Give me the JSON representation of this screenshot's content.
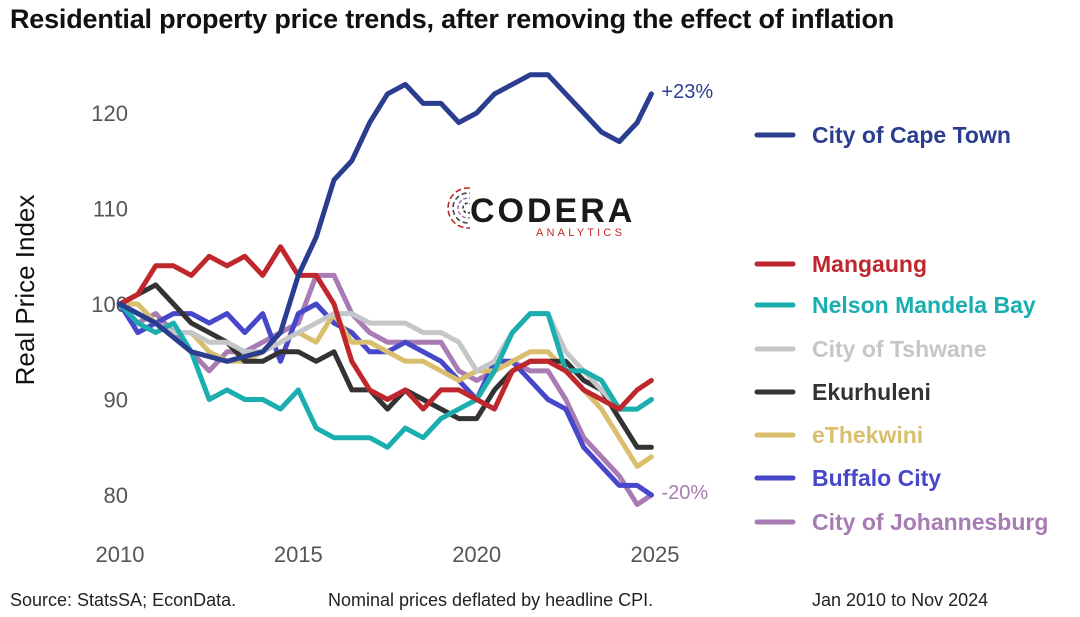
{
  "footer": {
    "source": "Source: StatsSA; EconData.",
    "note": "Nominal prices deflated by headline CPI.",
    "period": "Jan 2010 to Nov 2024"
  },
  "logo": {
    "main": "CODERA",
    "sub": "ANALYTICS"
  },
  "colors": {
    "axis_text": "#555555",
    "background": "#ffffff"
  },
  "chart_data": {
    "type": "line",
    "title": "Residential property price trends, after removing the effect of inflation",
    "xlabel": "",
    "ylabel": "Real Price Index",
    "xlim": [
      2009.5,
      2025.5
    ],
    "ylim": [
      76,
      127
    ],
    "xticks": [
      2010,
      2015,
      2020,
      2025
    ],
    "yticks": [
      80,
      90,
      100,
      110,
      120
    ],
    "grid": false,
    "legend": "right",
    "annotations": [
      {
        "text": "+23%",
        "series": "City of Cape Town",
        "color": "#2a3d8f"
      },
      {
        "text": "-20%",
        "series": "City of Johannesburg",
        "color": "#a87bb5"
      }
    ],
    "series": [
      {
        "name": "City of Cape Town",
        "color": "#2a3d8f",
        "x": [
          2010,
          2011,
          2012,
          2013,
          2014,
          2014.5,
          2015,
          2015.5,
          2016,
          2016.5,
          2017,
          2017.5,
          2018,
          2018.5,
          2019,
          2019.5,
          2020,
          2020.5,
          2021,
          2021.5,
          2022,
          2022.5,
          2023,
          2023.5,
          2024,
          2024.5,
          2024.9
        ],
        "y": [
          100,
          98,
          95,
          94,
          95,
          97,
          103,
          107,
          113,
          115,
          119,
          122,
          123,
          121,
          121,
          119,
          120,
          122,
          123,
          124,
          124,
          122,
          120,
          118,
          117,
          119,
          122
        ]
      },
      {
        "name": "Mangaung",
        "color": "#c0272d",
        "x": [
          2010,
          2010.5,
          2011,
          2011.5,
          2012,
          2012.5,
          2013,
          2013.5,
          2014,
          2014.5,
          2015,
          2015.5,
          2016,
          2016.5,
          2017,
          2017.5,
          2018,
          2018.5,
          2019,
          2019.5,
          2020,
          2020.5,
          2021,
          2021.5,
          2022,
          2022.5,
          2023,
          2023.5,
          2024,
          2024.5,
          2024.9
        ],
        "y": [
          100,
          101,
          104,
          104,
          103,
          105,
          104,
          105,
          103,
          106,
          103,
          103,
          100,
          94,
          91,
          90,
          91,
          89,
          91,
          91,
          90,
          89,
          93,
          94,
          94,
          93,
          91,
          90,
          89,
          91,
          92
        ]
      },
      {
        "name": "Nelson Mandela Bay",
        "color": "#1aaeb0",
        "x": [
          2010,
          2010.5,
          2011,
          2011.5,
          2012,
          2012.5,
          2013,
          2013.5,
          2014,
          2014.5,
          2015,
          2015.5,
          2016,
          2016.5,
          2017,
          2017.5,
          2018,
          2018.5,
          2019,
          2019.5,
          2020,
          2020.5,
          2021,
          2021.5,
          2022,
          2022.5,
          2023,
          2023.5,
          2024,
          2024.5,
          2024.9
        ],
        "y": [
          100,
          98,
          97,
          98,
          95,
          90,
          91,
          90,
          90,
          89,
          91,
          87,
          86,
          86,
          86,
          85,
          87,
          86,
          88,
          89,
          90,
          93,
          97,
          99,
          99,
          93,
          93,
          92,
          89,
          89,
          90
        ]
      },
      {
        "name": "City of Tshwane",
        "color": "#c4c7c9",
        "x": [
          2010,
          2010.5,
          2011,
          2011.5,
          2012,
          2012.5,
          2013,
          2013.5,
          2014,
          2014.5,
          2015,
          2015.5,
          2016,
          2016.5,
          2017,
          2017.5,
          2018,
          2018.5,
          2019,
          2019.5,
          2020,
          2020.5,
          2021,
          2021.5,
          2022,
          2022.5,
          2023,
          2023.5,
          2024,
          2024.5,
          2024.9
        ],
        "y": [
          100,
          99,
          98,
          97,
          97,
          96,
          96,
          95,
          95,
          96,
          97,
          98,
          99,
          99,
          98,
          98,
          98,
          97,
          97,
          96,
          93,
          94,
          97,
          99,
          99,
          95,
          93,
          91,
          89,
          89,
          90
        ]
      },
      {
        "name": "Ekurhuleni",
        "color": "#333333",
        "x": [
          2010,
          2010.5,
          2011,
          2011.5,
          2012,
          2012.5,
          2013,
          2013.5,
          2014,
          2014.5,
          2015,
          2015.5,
          2016,
          2016.5,
          2017,
          2017.5,
          2018,
          2018.5,
          2019,
          2019.5,
          2020,
          2020.5,
          2021,
          2021.5,
          2022,
          2022.5,
          2023,
          2023.5,
          2024,
          2024.5,
          2024.9
        ],
        "y": [
          100,
          101,
          102,
          100,
          98,
          97,
          96,
          94,
          94,
          95,
          95,
          94,
          95,
          91,
          91,
          89,
          91,
          90,
          89,
          88,
          88,
          91,
          93,
          94,
          94,
          94,
          92,
          91,
          88,
          85,
          85
        ]
      },
      {
        "name": "eThekwini",
        "color": "#d9bf6d",
        "x": [
          2010,
          2010.5,
          2011,
          2011.5,
          2012,
          2012.5,
          2013,
          2013.5,
          2014,
          2014.5,
          2015,
          2015.5,
          2016,
          2016.5,
          2017,
          2017.5,
          2018,
          2018.5,
          2019,
          2019.5,
          2020,
          2020.5,
          2021,
          2021.5,
          2022,
          2022.5,
          2023,
          2023.5,
          2024,
          2024.5,
          2024.9
        ],
        "y": [
          100,
          100,
          98,
          97,
          97,
          95,
          94,
          94,
          95,
          96,
          97,
          96,
          99,
          96,
          96,
          95,
          94,
          94,
          93,
          92,
          93,
          93,
          94,
          95,
          95,
          93,
          91,
          89,
          86,
          83,
          84
        ]
      },
      {
        "name": "Buffalo City",
        "color": "#4747c9",
        "x": [
          2010,
          2010.5,
          2011,
          2011.5,
          2012,
          2012.5,
          2013,
          2013.5,
          2014,
          2014.5,
          2015,
          2015.5,
          2016,
          2016.5,
          2017,
          2017.5,
          2018,
          2018.5,
          2019,
          2019.5,
          2020,
          2020.5,
          2021,
          2021.5,
          2022,
          2022.5,
          2023,
          2023.5,
          2024,
          2024.5,
          2024.9
        ],
        "y": [
          100,
          97,
          98,
          99,
          99,
          98,
          99,
          97,
          99,
          94,
          99,
          100,
          98,
          97,
          95,
          95,
          96,
          95,
          94,
          92,
          90,
          94,
          94,
          92,
          90,
          89,
          85,
          83,
          81,
          81,
          80
        ]
      },
      {
        "name": "City of Johannesburg",
        "color": "#a87bb5",
        "x": [
          2010,
          2010.5,
          2011,
          2011.5,
          2012,
          2012.5,
          2013,
          2013.5,
          2014,
          2014.5,
          2015,
          2015.5,
          2016,
          2016.5,
          2017,
          2017.5,
          2018,
          2018.5,
          2019,
          2019.5,
          2020,
          2020.5,
          2021,
          2021.5,
          2022,
          2022.5,
          2023,
          2023.5,
          2024,
          2024.5,
          2024.9
        ],
        "y": [
          100,
          98,
          99,
          97,
          95,
          93,
          95,
          95,
          96,
          97,
          98,
          103,
          103,
          99,
          97,
          96,
          96,
          96,
          96,
          93,
          92,
          93,
          94,
          93,
          93,
          90,
          86,
          84,
          82,
          79,
          80
        ]
      }
    ]
  }
}
